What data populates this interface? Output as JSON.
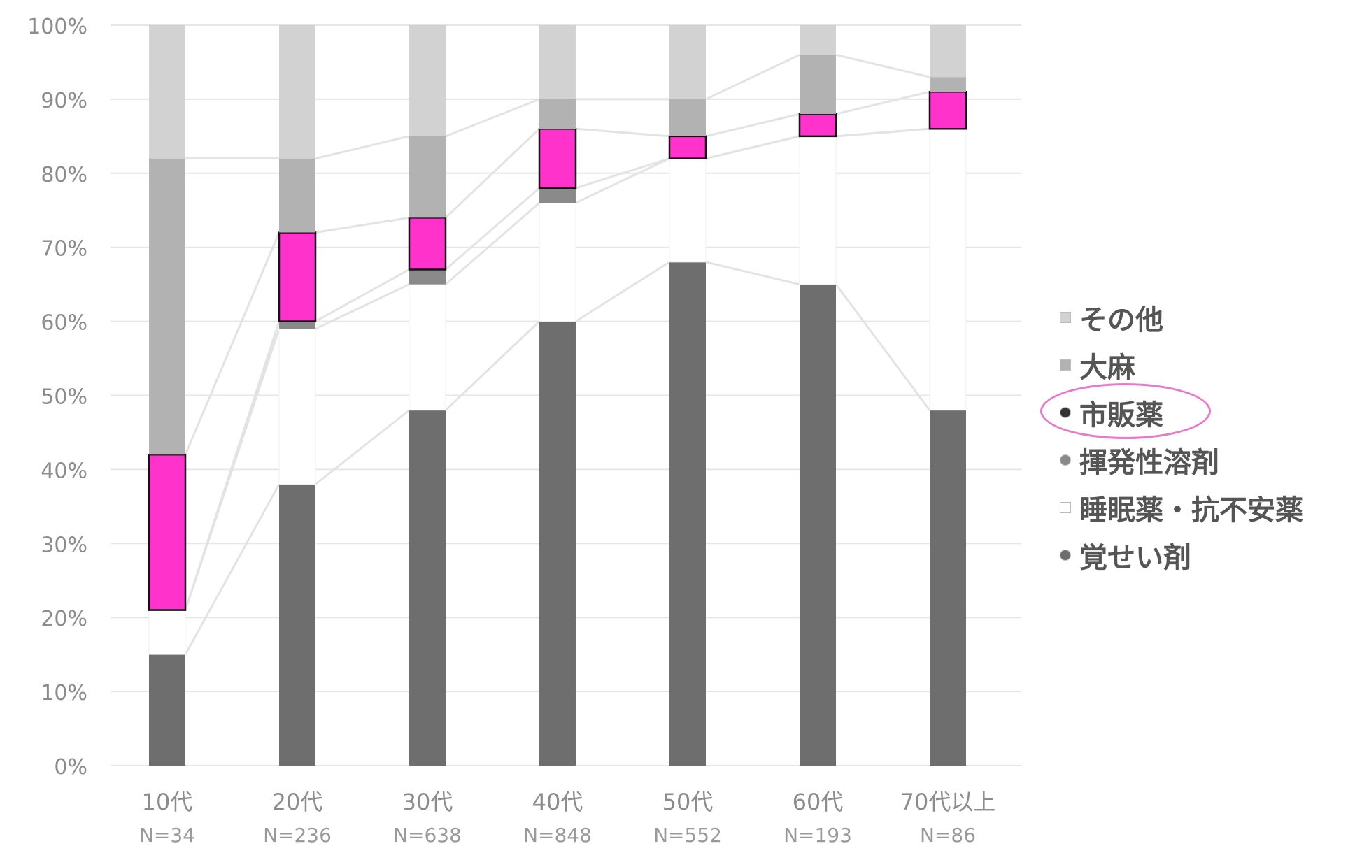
{
  "chart_data": {
    "type": "bar",
    "stacked": true,
    "categories": [
      "10代",
      "20代",
      "30代",
      "40代",
      "50代",
      "60代",
      "70代以上"
    ],
    "category_n": [
      "N=34",
      "N=236",
      "N=638",
      "N=848",
      "N=552",
      "N=193",
      "N=86"
    ],
    "y_ticks": [
      "0%",
      "10%",
      "20%",
      "30%",
      "40%",
      "50%",
      "60%",
      "70%",
      "80%",
      "90%",
      "100%"
    ],
    "ylim": [
      0,
      100
    ],
    "grid": true,
    "legend_position": "right",
    "series": [
      {
        "name": "覚せい剤",
        "color": "#6e6e6e",
        "values": [
          15,
          38,
          48,
          60,
          68,
          65,
          48
        ]
      },
      {
        "name": "睡眠薬・抗不安薬",
        "color": "#ffffff",
        "values": [
          6,
          21,
          17,
          16,
          14,
          20,
          38
        ]
      },
      {
        "name": "揮発性溶剤",
        "color": "#8a8a8a",
        "values": [
          0,
          1,
          2,
          2,
          0,
          0,
          0
        ]
      },
      {
        "name": "市販薬",
        "color": "#ff33cc",
        "values": [
          21,
          12,
          7,
          8,
          3,
          3,
          5
        ]
      },
      {
        "name": "大麻",
        "color": "#b2b2b2",
        "values": [
          40,
          10,
          11,
          4,
          5,
          8,
          2
        ]
      },
      {
        "name": "その他",
        "color": "#d2d2d2",
        "values": [
          18,
          18,
          15,
          10,
          10,
          4,
          7
        ]
      }
    ],
    "highlight_series": "市販薬",
    "legend_order": [
      "その他",
      "大麻",
      "市販薬",
      "揮発性溶剤",
      "睡眠薬・抗不安薬",
      "覚せい剤"
    ]
  }
}
